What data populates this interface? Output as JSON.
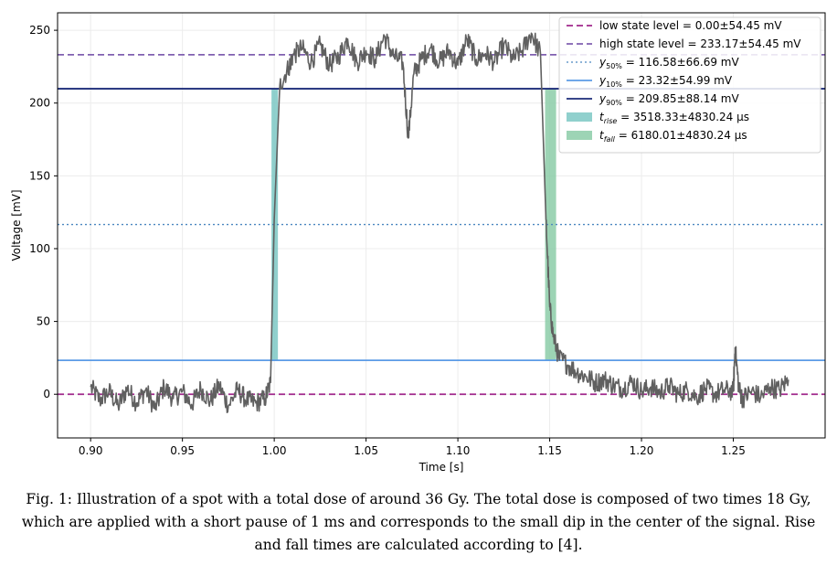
{
  "chart_data": {
    "type": "line",
    "xlabel": "Time [s]",
    "ylabel": "Voltage [mV]",
    "xlim": [
      0.882,
      1.3
    ],
    "ylim": [
      -30,
      262
    ],
    "xticks": [
      "0.90",
      "0.95",
      "1.00",
      "1.05",
      "1.10",
      "1.15",
      "1.20",
      "1.25"
    ],
    "xtick_values": [
      0.9,
      0.95,
      1.0,
      1.05,
      1.1,
      1.15,
      1.2,
      1.25
    ],
    "yticks": [
      "0",
      "50",
      "100",
      "150",
      "200",
      "250"
    ],
    "ytick_values": [
      0,
      50,
      100,
      150,
      200,
      250
    ],
    "grid": true,
    "legend_position": "top-right",
    "signal": {
      "color": "#606060",
      "x_start": 0.9,
      "x_end": 1.28,
      "rise_edge": [
        1.0,
        1.003
      ],
      "fall_edge": [
        1.148,
        1.152
      ],
      "low_level": 0,
      "high_level": 233,
      "dip": {
        "x": 1.073,
        "min": 176
      },
      "spike": {
        "x": 1.251,
        "max": 32
      },
      "samples": [
        [
          0.9,
          5
        ],
        [
          0.905,
          -4
        ],
        [
          0.91,
          2
        ],
        [
          0.915,
          -8
        ],
        [
          0.92,
          4
        ],
        [
          0.925,
          -6
        ],
        [
          0.93,
          3
        ],
        [
          0.935,
          -10
        ],
        [
          0.94,
          5
        ],
        [
          0.945,
          -3
        ],
        [
          0.95,
          2
        ],
        [
          0.955,
          -7
        ],
        [
          0.96,
          4
        ],
        [
          0.965,
          -5
        ],
        [
          0.97,
          6
        ],
        [
          0.975,
          -8
        ],
        [
          0.98,
          3
        ],
        [
          0.985,
          -4
        ],
        [
          0.99,
          -6
        ],
        [
          0.995,
          -3
        ],
        [
          0.998,
          8
        ],
        [
          1.0,
          120
        ],
        [
          1.003,
          212
        ],
        [
          1.008,
          225
        ],
        [
          1.01,
          232
        ],
        [
          1.015,
          238
        ],
        [
          1.02,
          228
        ],
        [
          1.025,
          240
        ],
        [
          1.03,
          226
        ],
        [
          1.035,
          232
        ],
        [
          1.04,
          244
        ],
        [
          1.045,
          228
        ],
        [
          1.05,
          236
        ],
        [
          1.055,
          230
        ],
        [
          1.06,
          246
        ],
        [
          1.065,
          232
        ],
        [
          1.07,
          228
        ],
        [
          1.073,
          176
        ],
        [
          1.076,
          220
        ],
        [
          1.08,
          230
        ],
        [
          1.085,
          238
        ],
        [
          1.09,
          228
        ],
        [
          1.095,
          236
        ],
        [
          1.1,
          226
        ],
        [
          1.105,
          244
        ],
        [
          1.11,
          230
        ],
        [
          1.115,
          234
        ],
        [
          1.12,
          228
        ],
        [
          1.125,
          240
        ],
        [
          1.13,
          230
        ],
        [
          1.135,
          236
        ],
        [
          1.14,
          248
        ],
        [
          1.145,
          234
        ],
        [
          1.148,
          120
        ],
        [
          1.15,
          60
        ],
        [
          1.152,
          40
        ],
        [
          1.155,
          25
        ],
        [
          1.16,
          20
        ],
        [
          1.165,
          15
        ],
        [
          1.17,
          12
        ],
        [
          1.175,
          8
        ],
        [
          1.18,
          10
        ],
        [
          1.185,
          6
        ],
        [
          1.19,
          4
        ],
        [
          1.195,
          9
        ],
        [
          1.2,
          2
        ],
        [
          1.205,
          5
        ],
        [
          1.21,
          1
        ],
        [
          1.215,
          6
        ],
        [
          1.22,
          0
        ],
        [
          1.225,
          3
        ],
        [
          1.23,
          -2
        ],
        [
          1.235,
          4
        ],
        [
          1.24,
          0
        ],
        [
          1.245,
          3
        ],
        [
          1.25,
          2
        ],
        [
          1.251,
          32
        ],
        [
          1.253,
          4
        ],
        [
          1.255,
          -3
        ],
        [
          1.26,
          2
        ],
        [
          1.265,
          -2
        ],
        [
          1.27,
          5
        ],
        [
          1.275,
          3
        ],
        [
          1.28,
          10
        ]
      ]
    },
    "reference_lines": [
      {
        "label": "low state level = 0.00±54.45 mV",
        "y": 0.0,
        "color": "#a0288c",
        "style": "dashed"
      },
      {
        "label": "high state level = 233.17±54.45 mV",
        "y": 233.17,
        "color": "#8060b0",
        "style": "dashed"
      },
      {
        "label_var": "y",
        "label_sub": "50%",
        "label_rest": " = 116.58±66.69 mV",
        "y": 116.58,
        "color": "#4a86c0",
        "style": "dotted"
      },
      {
        "label_var": "y",
        "label_sub": "10%",
        "label_rest": " = 23.32±54.99 mV",
        "y": 23.32,
        "color": "#5b9be6",
        "style": "solid"
      },
      {
        "label_var": "y",
        "label_sub": "90%",
        "label_rest": " = 209.85±88.14 mV",
        "y": 209.85,
        "color": "#1c2c78",
        "style": "solid"
      }
    ],
    "spans": [
      {
        "label_var": "t",
        "label_sub": "rise",
        "label_rest": " = 3518.33±4830.24 µs",
        "x0": 0.9985,
        "x1": 1.002,
        "y0": 23.32,
        "y1": 209.85,
        "color": "#7cc8c4"
      },
      {
        "label_var": "t",
        "label_sub": "fall",
        "label_rest": " = 6180.01±4830.24 µs",
        "x0": 1.1475,
        "x1": 1.1535,
        "y0": 23.32,
        "y1": 209.85,
        "color": "#8ccca8"
      }
    ]
  },
  "caption": "Fig. 1: Illustration of a spot with a total dose of around 36 Gy. The total dose is composed of two times 18 Gy, which are applied with a short pause of 1 ms and corresponds to the small dip in the center of the signal. Rise and fall times are calculated according to [4]."
}
